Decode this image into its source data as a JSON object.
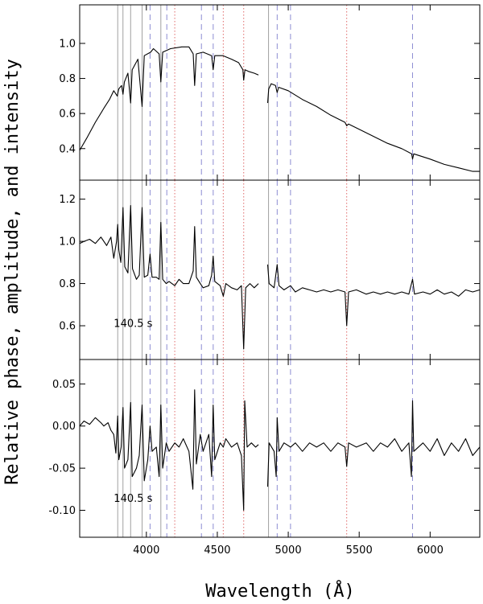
{
  "chart_data": {
    "type": "line",
    "xlabel": "Wavelength (Å)",
    "ylabel": "Relative phase, amplitude, and intensity",
    "xlim": [
      3530,
      6350
    ],
    "x_ticks": [
      "4000",
      "4500",
      "5000",
      "5500",
      "6000"
    ],
    "line_markers": {
      "solid_gray": [
        3798,
        3835,
        3889,
        3970,
        4102,
        4861
      ],
      "dashed_blue": [
        4026,
        4144,
        4388,
        4471,
        4922,
        5016,
        5876
      ],
      "dotted_red": [
        4200,
        4542,
        4686,
        5412
      ]
    },
    "colors": {
      "trace": "#000000",
      "solid_marker": "#a0a0a0",
      "dashed_marker": "#8c8cd2",
      "dotted_marker": "#e06a6a"
    },
    "panels": [
      {
        "name": "intensity",
        "ylim": [
          0.22,
          1.22
        ],
        "y_ticks": [
          "0.4",
          "0.6",
          "0.8",
          "1.0"
        ],
        "y_tick_values": [
          0.4,
          0.6,
          0.8,
          1.0
        ],
        "annotation": "",
        "segments": [
          [
            [
              3530,
              0.39
            ],
            [
              3580,
              0.46
            ],
            [
              3640,
              0.55
            ],
            [
              3700,
              0.63
            ],
            [
              3740,
              0.68
            ],
            [
              3770,
              0.73
            ],
            [
              3795,
              0.7
            ],
            [
              3805,
              0.74
            ],
            [
              3825,
              0.76
            ],
            [
              3835,
              0.71
            ],
            [
              3845,
              0.78
            ],
            [
              3870,
              0.83
            ],
            [
              3889,
              0.66
            ],
            [
              3900,
              0.85
            ],
            [
              3940,
              0.91
            ],
            [
              3970,
              0.64
            ],
            [
              3985,
              0.93
            ],
            [
              4030,
              0.95
            ],
            [
              4050,
              0.97
            ],
            [
              4090,
              0.94
            ],
            [
              4102,
              0.78
            ],
            [
              4115,
              0.95
            ],
            [
              4170,
              0.97
            ],
            [
              4250,
              0.98
            ],
            [
              4300,
              0.98
            ],
            [
              4330,
              0.94
            ],
            [
              4340,
              0.76
            ],
            [
              4352,
              0.94
            ],
            [
              4400,
              0.95
            ],
            [
              4460,
              0.93
            ],
            [
              4471,
              0.85
            ],
            [
              4482,
              0.93
            ],
            [
              4540,
              0.93
            ],
            [
              4600,
              0.91
            ],
            [
              4650,
              0.89
            ],
            [
              4680,
              0.85
            ],
            [
              4686,
              0.79
            ],
            [
              4695,
              0.85
            ],
            [
              4720,
              0.84
            ],
            [
              4760,
              0.83
            ],
            [
              4790,
              0.82
            ]
          ],
          [
            [
              4855,
              0.66
            ],
            [
              4862,
              0.74
            ],
            [
              4880,
              0.77
            ],
            [
              4910,
              0.76
            ],
            [
              4922,
              0.72
            ],
            [
              4932,
              0.75
            ],
            [
              5000,
              0.73
            ],
            [
              5100,
              0.68
            ],
            [
              5200,
              0.64
            ],
            [
              5300,
              0.59
            ],
            [
              5400,
              0.55
            ],
            [
              5412,
              0.53
            ],
            [
              5425,
              0.54
            ],
            [
              5500,
              0.51
            ],
            [
              5600,
              0.47
            ],
            [
              5700,
              0.43
            ],
            [
              5800,
              0.4
            ],
            [
              5870,
              0.37
            ],
            [
              5876,
              0.34
            ],
            [
              5885,
              0.37
            ],
            [
              6000,
              0.34
            ],
            [
              6100,
              0.31
            ],
            [
              6200,
              0.29
            ],
            [
              6300,
              0.27
            ],
            [
              6350,
              0.27
            ]
          ]
        ]
      },
      {
        "name": "amplitude",
        "ylim": [
          0.44,
          1.29
        ],
        "y_ticks": [
          "0.6",
          "0.8",
          "1.0",
          "1.2"
        ],
        "y_tick_values": [
          0.6,
          0.8,
          1.0,
          1.2
        ],
        "annotation": "140.5 s",
        "annotation_pos": [
          3770,
          0.61
        ],
        "segments": [
          [
            [
              3530,
              0.99
            ],
            [
              3560,
              1.0
            ],
            [
              3600,
              1.01
            ],
            [
              3640,
              0.99
            ],
            [
              3680,
              1.02
            ],
            [
              3720,
              0.98
            ],
            [
              3750,
              1.02
            ],
            [
              3770,
              0.92
            ],
            [
              3790,
              1.0
            ],
            [
              3798,
              1.08
            ],
            [
              3806,
              0.96
            ],
            [
              3820,
              0.9
            ],
            [
              3835,
              1.16
            ],
            [
              3848,
              0.88
            ],
            [
              3870,
              0.85
            ],
            [
              3889,
              1.17
            ],
            [
              3902,
              0.87
            ],
            [
              3930,
              0.82
            ],
            [
              3950,
              0.84
            ],
            [
              3970,
              1.16
            ],
            [
              3985,
              0.83
            ],
            [
              4010,
              0.84
            ],
            [
              4026,
              0.94
            ],
            [
              4040,
              0.83
            ],
            [
              4070,
              0.83
            ],
            [
              4090,
              0.82
            ],
            [
              4102,
              1.09
            ],
            [
              4115,
              0.82
            ],
            [
              4140,
              0.8
            ],
            [
              4160,
              0.81
            ],
            [
              4200,
              0.79
            ],
            [
              4230,
              0.82
            ],
            [
              4260,
              0.8
            ],
            [
              4300,
              0.8
            ],
            [
              4330,
              0.86
            ],
            [
              4340,
              1.07
            ],
            [
              4352,
              0.83
            ],
            [
              4380,
              0.8
            ],
            [
              4400,
              0.78
            ],
            [
              4440,
              0.79
            ],
            [
              4460,
              0.84
            ],
            [
              4471,
              0.93
            ],
            [
              4482,
              0.81
            ],
            [
              4520,
              0.79
            ],
            [
              4542,
              0.74
            ],
            [
              4560,
              0.8
            ],
            [
              4600,
              0.78
            ],
            [
              4640,
              0.77
            ],
            [
              4670,
              0.79
            ],
            [
              4686,
              0.49
            ],
            [
              4700,
              0.78
            ],
            [
              4730,
              0.8
            ],
            [
              4760,
              0.78
            ],
            [
              4790,
              0.8
            ]
          ],
          [
            [
              4855,
              0.89
            ],
            [
              4865,
              0.8
            ],
            [
              4900,
              0.78
            ],
            [
              4922,
              0.89
            ],
            [
              4935,
              0.79
            ],
            [
              4970,
              0.77
            ],
            [
              5016,
              0.79
            ],
            [
              5050,
              0.76
            ],
            [
              5100,
              0.78
            ],
            [
              5150,
              0.77
            ],
            [
              5200,
              0.76
            ],
            [
              5250,
              0.77
            ],
            [
              5300,
              0.76
            ],
            [
              5350,
              0.77
            ],
            [
              5400,
              0.76
            ],
            [
              5412,
              0.6
            ],
            [
              5425,
              0.76
            ],
            [
              5480,
              0.77
            ],
            [
              5550,
              0.75
            ],
            [
              5600,
              0.76
            ],
            [
              5650,
              0.75
            ],
            [
              5700,
              0.76
            ],
            [
              5750,
              0.75
            ],
            [
              5800,
              0.76
            ],
            [
              5850,
              0.75
            ],
            [
              5876,
              0.82
            ],
            [
              5890,
              0.75
            ],
            [
              5950,
              0.76
            ],
            [
              6000,
              0.75
            ],
            [
              6050,
              0.77
            ],
            [
              6100,
              0.75
            ],
            [
              6150,
              0.76
            ],
            [
              6200,
              0.74
            ],
            [
              6250,
              0.77
            ],
            [
              6300,
              0.76
            ],
            [
              6350,
              0.77
            ]
          ]
        ]
      },
      {
        "name": "phase",
        "ylim": [
          -0.132,
          0.079
        ],
        "y_ticks": [
          "0.05",
          "0.00",
          "-0.05",
          "-0.10"
        ],
        "y_tick_values": [
          0.05,
          0.0,
          -0.05,
          -0.1
        ],
        "annotation": "140.5 s",
        "annotation_pos": [
          3770,
          -0.086
        ],
        "segments": [
          [
            [
              3530,
              0.0
            ],
            [
              3560,
              0.006
            ],
            [
              3600,
              0.002
            ],
            [
              3640,
              0.01
            ],
            [
              3680,
              0.004
            ],
            [
              3700,
              0.0
            ],
            [
              3730,
              0.004
            ],
            [
              3750,
              -0.005
            ],
            [
              3770,
              -0.01
            ],
            [
              3785,
              -0.032
            ],
            [
              3798,
              0.012
            ],
            [
              3806,
              -0.04
            ],
            [
              3822,
              -0.025
            ],
            [
              3835,
              0.022
            ],
            [
              3846,
              -0.05
            ],
            [
              3870,
              -0.04
            ],
            [
              3889,
              0.028
            ],
            [
              3900,
              -0.06
            ],
            [
              3930,
              -0.05
            ],
            [
              3950,
              -0.035
            ],
            [
              3970,
              0.025
            ],
            [
              3985,
              -0.065
            ],
            [
              4010,
              -0.04
            ],
            [
              4026,
              0.0
            ],
            [
              4040,
              -0.03
            ],
            [
              4070,
              -0.025
            ],
            [
              4090,
              -0.06
            ],
            [
              4102,
              0.025
            ],
            [
              4115,
              -0.05
            ],
            [
              4140,
              -0.02
            ],
            [
              4160,
              -0.03
            ],
            [
              4200,
              -0.02
            ],
            [
              4230,
              -0.025
            ],
            [
              4260,
              -0.015
            ],
            [
              4300,
              -0.03
            ],
            [
              4328,
              -0.075
            ],
            [
              4340,
              0.043
            ],
            [
              4352,
              -0.045
            ],
            [
              4380,
              -0.01
            ],
            [
              4400,
              -0.03
            ],
            [
              4440,
              -0.01
            ],
            [
              4460,
              -0.06
            ],
            [
              4471,
              0.025
            ],
            [
              4482,
              -0.04
            ],
            [
              4520,
              -0.02
            ],
            [
              4542,
              -0.025
            ],
            [
              4560,
              -0.015
            ],
            [
              4600,
              -0.025
            ],
            [
              4640,
              -0.02
            ],
            [
              4670,
              -0.035
            ],
            [
              4686,
              -0.1
            ],
            [
              4693,
              0.03
            ],
            [
              4710,
              -0.025
            ],
            [
              4740,
              -0.02
            ],
            [
              4770,
              -0.025
            ],
            [
              4790,
              -0.022
            ]
          ],
          [
            [
              4855,
              -0.072
            ],
            [
              4865,
              -0.02
            ],
            [
              4900,
              -0.03
            ],
            [
              4915,
              -0.06
            ],
            [
              4922,
              0.01
            ],
            [
              4935,
              -0.03
            ],
            [
              4970,
              -0.02
            ],
            [
              5016,
              -0.025
            ],
            [
              5050,
              -0.02
            ],
            [
              5100,
              -0.03
            ],
            [
              5150,
              -0.02
            ],
            [
              5200,
              -0.025
            ],
            [
              5250,
              -0.02
            ],
            [
              5300,
              -0.03
            ],
            [
              5350,
              -0.02
            ],
            [
              5400,
              -0.025
            ],
            [
              5412,
              -0.048
            ],
            [
              5425,
              -0.02
            ],
            [
              5480,
              -0.025
            ],
            [
              5550,
              -0.02
            ],
            [
              5600,
              -0.03
            ],
            [
              5650,
              -0.02
            ],
            [
              5700,
              -0.025
            ],
            [
              5750,
              -0.015
            ],
            [
              5800,
              -0.03
            ],
            [
              5850,
              -0.02
            ],
            [
              5868,
              -0.06
            ],
            [
              5876,
              0.03
            ],
            [
              5885,
              -0.03
            ],
            [
              5950,
              -0.02
            ],
            [
              6000,
              -0.03
            ],
            [
              6050,
              -0.015
            ],
            [
              6100,
              -0.035
            ],
            [
              6150,
              -0.02
            ],
            [
              6200,
              -0.03
            ],
            [
              6250,
              -0.015
            ],
            [
              6300,
              -0.035
            ],
            [
              6350,
              -0.025
            ]
          ]
        ]
      }
    ]
  }
}
